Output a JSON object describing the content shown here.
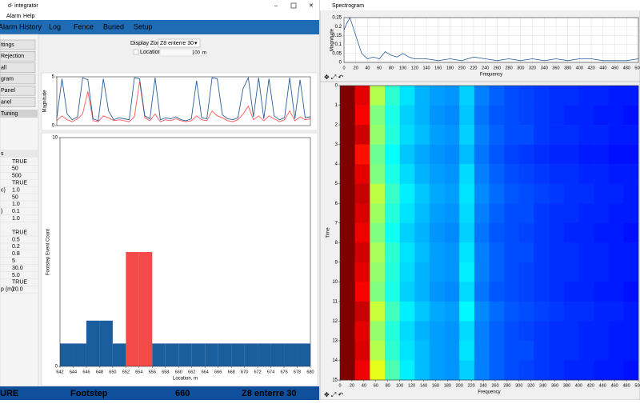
{
  "left_window": {
    "title": "d- integrator",
    "menu": [
      "Alarm",
      "Help"
    ],
    "nav": [
      "Alarm History",
      "Log",
      "Fence",
      "Buried",
      "Setup"
    ],
    "sidebar_buttons": [
      "ttings",
      "Rejection",
      "all",
      "gram",
      "Panel",
      "anel"
    ],
    "tuning": "Tuning",
    "table_header": "s",
    "table_rows": [
      {
        "value": "TRUE"
      },
      {
        "value": "50"
      },
      {
        "value": "500"
      },
      {
        "value": "TRUE"
      },
      {
        "name": "c)",
        "value": "1.0"
      },
      {
        "value": "50"
      },
      {
        "value": "1.0"
      },
      {
        "name": ")",
        "value": "0.1"
      },
      {
        "value": "1.0"
      },
      {
        "value": "TRUE"
      },
      {
        "value": "0.5"
      },
      {
        "value": "0.2"
      },
      {
        "value": "0.8"
      },
      {
        "value": "5"
      },
      {
        "value": "30.0"
      },
      {
        "value": "5.0"
      },
      {
        "value": "TRUE"
      },
      {
        "name": "p (m)",
        "value": "20.0"
      }
    ],
    "display_zone_label": "Display Zone",
    "display_zone_value": "Z8 enterre 30",
    "location_label": "Location",
    "location_value": "100",
    "location_unit": "m",
    "status": [
      "URE",
      "Footstep",
      "660",
      "Z8 enterre 30"
    ]
  },
  "right_window": {
    "title": "Spectrogram"
  },
  "chart_data": [
    {
      "type": "line",
      "ylabel": "Magnitude",
      "ylim": [
        0,
        5
      ],
      "yticks": [
        0,
        5
      ],
      "series": [
        {
          "name": "red",
          "color": "#ff5a5a",
          "values": [
            0.5,
            1.0,
            0.6,
            0.4,
            0.7,
            1.2,
            3.5,
            0.5,
            0.4,
            1.0,
            0.8,
            0.5,
            0.6,
            0.5,
            0.4,
            0.9,
            4.5,
            0.8,
            0.5,
            1.2,
            0.4,
            0.6,
            0.5,
            0.7,
            0.5,
            0.4,
            0.5,
            1.0,
            0.6,
            0.5,
            1.5,
            1.0,
            0.8,
            0.5,
            0.4,
            0.6,
            1.2,
            2.0,
            0.6,
            1.0,
            0.5,
            1.0,
            0.7,
            0.4,
            0.6,
            1.5,
            0.5,
            0.9,
            0.6,
            0.7
          ]
        },
        {
          "name": "blue",
          "color": "#2a5f9a",
          "values": [
            0.8,
            4.8,
            1.2,
            0.6,
            0.9,
            4.9,
            4.7,
            0.7,
            0.5,
            4.8,
            1.5,
            0.6,
            0.8,
            0.7,
            0.6,
            4.9,
            4.8,
            1.0,
            0.7,
            4.9,
            0.6,
            0.8,
            0.7,
            0.9,
            0.6,
            0.5,
            0.7,
            4.6,
            0.8,
            0.7,
            4.9,
            4.8,
            1.1,
            0.7,
            0.6,
            0.8,
            3.8,
            4.9,
            0.9,
            4.9,
            0.7,
            4.8,
            1.0,
            0.6,
            0.8,
            4.9,
            0.7,
            4.7,
            0.8,
            0.9
          ]
        }
      ]
    },
    {
      "type": "histogram",
      "xlabel": "Location, m",
      "ylabel": "Footstep Event Count",
      "bins": [
        642,
        644,
        646,
        648,
        650,
        652,
        654,
        656,
        658,
        660,
        662,
        664,
        666,
        668,
        670,
        672,
        674,
        676,
        678,
        680
      ],
      "values": [
        1,
        1,
        2,
        2,
        1,
        5,
        5,
        1,
        1,
        1,
        1,
        1,
        1,
        1,
        1,
        1,
        1,
        1,
        1
      ],
      "colors": [
        "#1a5e9e",
        "#1a5e9e",
        "#1a5e9e",
        "#1a5e9e",
        "#1a5e9e",
        "#f44a4a",
        "#f44a4a",
        "#1a5e9e",
        "#1a5e9e",
        "#1a5e9e",
        "#1a5e9e",
        "#1a5e9e",
        "#1a5e9e",
        "#1a5e9e",
        "#1a5e9e",
        "#1a5e9e",
        "#1a5e9e",
        "#1a5e9e",
        "#1a5e9e"
      ],
      "xlim": [
        642,
        680
      ],
      "xticks": [
        642,
        644,
        646,
        648,
        650,
        652,
        654,
        656,
        658,
        660,
        662,
        664,
        666,
        668,
        670,
        672,
        674,
        676,
        678,
        680
      ],
      "ylim": [
        0,
        10
      ],
      "yticks": [
        0,
        10
      ]
    },
    {
      "type": "line",
      "xlabel": "Frequency",
      "ylabel": "Magnitude",
      "grid": true,
      "x": [
        0,
        5,
        10,
        20,
        30,
        40,
        50,
        60,
        70,
        80,
        90,
        100,
        110,
        120,
        140,
        160,
        180,
        200,
        220,
        240,
        260,
        280,
        300,
        320,
        340,
        360,
        380,
        400,
        420,
        440,
        460,
        480,
        500
      ],
      "series": [
        {
          "name": "spectrum",
          "color": "#2a5f9a",
          "values": [
            0.18,
            0.22,
            0.25,
            0.15,
            0.05,
            0.02,
            0.03,
            0.02,
            0.06,
            0.04,
            0.03,
            0.05,
            0.03,
            0.02,
            0.02,
            0.01,
            0.02,
            0.01,
            0.03,
            0.02,
            0.01,
            0.02,
            0.01,
            0.02,
            0.01,
            0.02,
            0.01,
            0.02,
            0.02,
            0.01,
            0.01,
            0.01,
            0.02
          ]
        }
      ],
      "xlim": [
        0,
        500
      ],
      "xticks": [
        0,
        20,
        40,
        60,
        80,
        100,
        120,
        140,
        160,
        180,
        200,
        220,
        240,
        260,
        280,
        300,
        320,
        340,
        360,
        380,
        400,
        420,
        440,
        460,
        480,
        500
      ],
      "ylim": [
        0,
        0.25
      ],
      "yticks": [
        0,
        0.05,
        0.1,
        0.15,
        0.2,
        0.25
      ]
    },
    {
      "type": "heatmap",
      "xlabel": "Frequency",
      "ylabel": "Time",
      "xlim": [
        0,
        500
      ],
      "xticks": [
        0,
        20,
        40,
        60,
        80,
        100,
        120,
        140,
        160,
        180,
        200,
        220,
        240,
        260,
        280,
        300,
        320,
        340,
        360,
        380,
        400,
        420,
        440,
        460,
        480,
        500
      ],
      "ylim": [
        0,
        15
      ],
      "yticks": [
        0,
        1,
        2,
        3,
        4,
        5,
        6,
        7,
        8,
        9,
        10,
        11,
        12,
        13,
        14,
        15
      ],
      "z": [
        [
          1.0,
          0.9,
          0.55,
          0.42,
          0.35,
          0.3,
          0.28,
          0.27,
          0.33,
          0.25,
          0.22,
          0.2,
          0.19,
          0.18,
          0.17,
          0.17,
          0.16,
          0.16,
          0.15,
          0.15
        ],
        [
          1.0,
          0.88,
          0.5,
          0.4,
          0.33,
          0.3,
          0.27,
          0.26,
          0.32,
          0.24,
          0.21,
          0.2,
          0.19,
          0.18,
          0.17,
          0.16,
          0.16,
          0.15,
          0.15,
          0.14
        ],
        [
          1.0,
          0.92,
          0.52,
          0.41,
          0.34,
          0.31,
          0.28,
          0.27,
          0.33,
          0.25,
          0.22,
          0.2,
          0.2,
          0.18,
          0.17,
          0.17,
          0.16,
          0.16,
          0.15,
          0.15
        ],
        [
          1.0,
          0.86,
          0.48,
          0.38,
          0.32,
          0.29,
          0.27,
          0.26,
          0.31,
          0.24,
          0.21,
          0.19,
          0.18,
          0.17,
          0.16,
          0.16,
          0.15,
          0.15,
          0.14,
          0.14
        ],
        [
          1.0,
          0.9,
          0.5,
          0.4,
          0.34,
          0.3,
          0.28,
          0.27,
          0.34,
          0.25,
          0.22,
          0.2,
          0.19,
          0.18,
          0.17,
          0.17,
          0.16,
          0.16,
          0.15,
          0.15
        ],
        [
          1.0,
          0.93,
          0.56,
          0.43,
          0.36,
          0.32,
          0.29,
          0.28,
          0.35,
          0.26,
          0.23,
          0.21,
          0.2,
          0.19,
          0.18,
          0.17,
          0.17,
          0.16,
          0.16,
          0.15
        ],
        [
          1.0,
          0.91,
          0.53,
          0.41,
          0.35,
          0.31,
          0.28,
          0.27,
          0.34,
          0.25,
          0.22,
          0.2,
          0.2,
          0.18,
          0.17,
          0.17,
          0.16,
          0.16,
          0.15,
          0.15
        ],
        [
          1.0,
          0.89,
          0.5,
          0.39,
          0.33,
          0.3,
          0.27,
          0.26,
          0.33,
          0.24,
          0.21,
          0.2,
          0.19,
          0.18,
          0.17,
          0.16,
          0.16,
          0.15,
          0.15,
          0.14
        ],
        [
          1.0,
          0.92,
          0.54,
          0.42,
          0.35,
          0.31,
          0.28,
          0.27,
          0.35,
          0.25,
          0.22,
          0.2,
          0.2,
          0.18,
          0.17,
          0.17,
          0.16,
          0.16,
          0.15,
          0.15
        ],
        [
          1.0,
          0.9,
          0.52,
          0.41,
          0.34,
          0.3,
          0.28,
          0.27,
          0.36,
          0.25,
          0.22,
          0.2,
          0.19,
          0.18,
          0.17,
          0.17,
          0.16,
          0.16,
          0.15,
          0.15
        ],
        [
          1.0,
          0.88,
          0.5,
          0.4,
          0.33,
          0.3,
          0.27,
          0.26,
          0.34,
          0.24,
          0.21,
          0.2,
          0.19,
          0.18,
          0.17,
          0.16,
          0.16,
          0.15,
          0.15,
          0.14
        ],
        [
          1.0,
          0.93,
          0.57,
          0.44,
          0.36,
          0.32,
          0.29,
          0.28,
          0.37,
          0.26,
          0.23,
          0.21,
          0.2,
          0.19,
          0.18,
          0.17,
          0.17,
          0.16,
          0.16,
          0.15
        ],
        [
          1.0,
          0.9,
          0.52,
          0.41,
          0.34,
          0.3,
          0.28,
          0.27,
          0.34,
          0.25,
          0.22,
          0.2,
          0.19,
          0.18,
          0.17,
          0.17,
          0.16,
          0.16,
          0.15,
          0.15
        ],
        [
          1.0,
          0.91,
          0.55,
          0.42,
          0.35,
          0.31,
          0.28,
          0.27,
          0.35,
          0.25,
          0.22,
          0.2,
          0.2,
          0.18,
          0.17,
          0.17,
          0.16,
          0.16,
          0.15,
          0.15
        ],
        [
          1.0,
          0.89,
          0.6,
          0.45,
          0.36,
          0.31,
          0.28,
          0.27,
          0.33,
          0.25,
          0.22,
          0.2,
          0.19,
          0.18,
          0.17,
          0.16,
          0.16,
          0.15,
          0.15,
          0.14
        ]
      ]
    }
  ]
}
